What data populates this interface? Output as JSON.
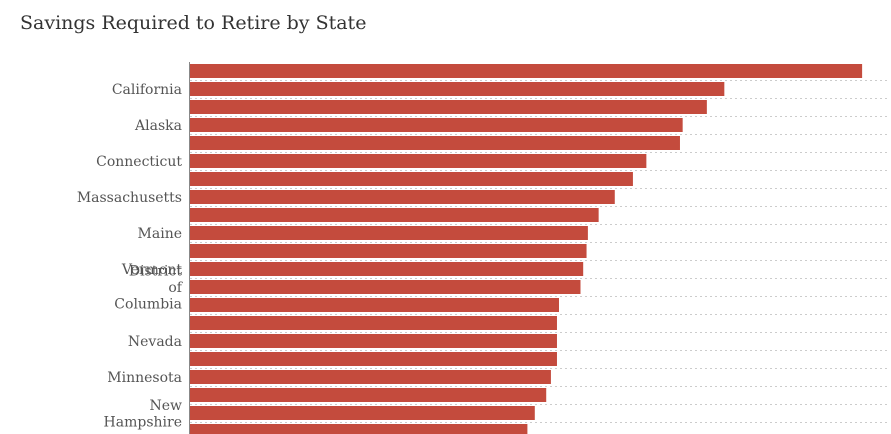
{
  "chart_data": {
    "type": "bar",
    "orientation": "horizontal",
    "title": "Savings Required to Retire by State",
    "xlabel": "",
    "ylabel": "",
    "categories": [
      "",
      "California",
      "",
      "Alaska",
      "",
      "Connecticut",
      "",
      "Massachusetts",
      "",
      "Maine",
      "",
      "Vermont",
      "District of Columbia",
      "",
      "",
      "Nevada",
      "",
      "Minnesota",
      "",
      "New Hampshire",
      ""
    ],
    "values": [
      100,
      79.5,
      76.9,
      73.3,
      72.9,
      67.9,
      65.9,
      63.2,
      60.8,
      59.2,
      59.0,
      58.5,
      58.1,
      54.9,
      54.6,
      54.6,
      54.6,
      53.7,
      53.0,
      51.3,
      50.2
    ],
    "xlim": [
      0,
      104
    ],
    "grid": true,
    "bar_color": "#c44b3d"
  }
}
